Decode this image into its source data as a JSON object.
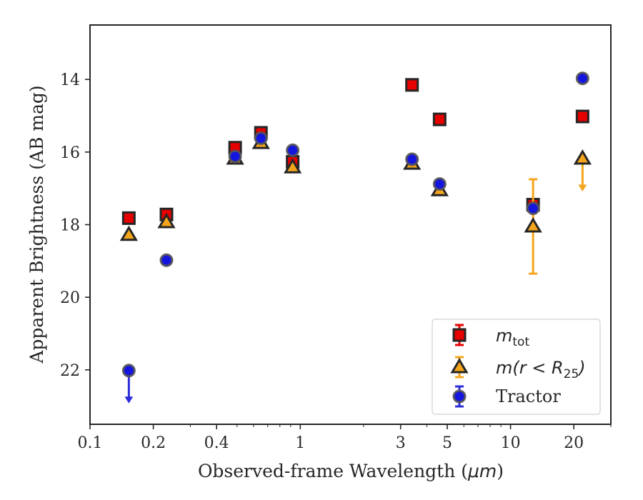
{
  "chart_data": {
    "type": "scatter",
    "xlabel_prefix": "Observed-frame Wavelength (",
    "xlabel_unit": "μm",
    "xlabel_suffix": ")",
    "ylabel": "Apparent Brightness (AB mag)",
    "xscale": "log",
    "xlim": [
      0.1,
      30
    ],
    "ylim": [
      23.5,
      12.5
    ],
    "y_inverted": true,
    "x_ticks": [
      {
        "value": 0.1,
        "label": "0.1"
      },
      {
        "value": 0.2,
        "label": "0.2"
      },
      {
        "value": 0.4,
        "label": "0.4"
      },
      {
        "value": 1,
        "label": "1"
      },
      {
        "value": 3,
        "label": "3"
      },
      {
        "value": 5,
        "label": "5"
      },
      {
        "value": 10,
        "label": "10"
      },
      {
        "value": 20,
        "label": "20"
      }
    ],
    "y_ticks": [
      {
        "value": 14,
        "label": "14"
      },
      {
        "value": 16,
        "label": "16"
      },
      {
        "value": 18,
        "label": "18"
      },
      {
        "value": 20,
        "label": "20"
      },
      {
        "value": 22,
        "label": "22"
      }
    ],
    "grid": false,
    "legend_position": "lower-right",
    "series": [
      {
        "name": "m_tot",
        "legend_main": "m",
        "legend_sub": "tot",
        "legend_rest": "",
        "marker": "square",
        "color": "#e60000",
        "errcolor": "#e60000",
        "points": [
          {
            "x": 0.153,
            "y": 17.82
          },
          {
            "x": 0.231,
            "y": 17.72
          },
          {
            "x": 0.49,
            "y": 15.88
          },
          {
            "x": 0.65,
            "y": 15.47
          },
          {
            "x": 0.92,
            "y": 16.27
          },
          {
            "x": 3.4,
            "y": 14.15
          },
          {
            "x": 4.6,
            "y": 15.1
          },
          {
            "x": 12.8,
            "y": 17.45
          },
          {
            "x": 22.0,
            "y": 15.02
          }
        ]
      },
      {
        "name": "m(r < R25)",
        "legend_main": "m(r < R",
        "legend_sub": "25",
        "legend_rest": ")",
        "marker": "triangle",
        "color": "#f5a51c",
        "errcolor": "#f5a51c",
        "points": [
          {
            "x": 0.153,
            "y": 18.28
          },
          {
            "x": 0.231,
            "y": 17.93
          },
          {
            "x": 0.49,
            "y": 16.18
          },
          {
            "x": 0.65,
            "y": 15.75
          },
          {
            "x": 0.92,
            "y": 16.42
          },
          {
            "x": 3.4,
            "y": 16.32
          },
          {
            "x": 4.6,
            "y": 17.05
          },
          {
            "x": 12.8,
            "y": 18.05,
            "yerr": 1.3
          },
          {
            "x": 22.0,
            "y": 16.18,
            "upper_limit": true
          }
        ]
      },
      {
        "name": "Tractor",
        "legend_main": "Tractor",
        "legend_sub": "",
        "legend_rest": "",
        "marker": "circle",
        "color": "#1515e0",
        "errcolor": "#2b2bdb",
        "points": [
          {
            "x": 0.153,
            "y": 22.02,
            "upper_limit": true
          },
          {
            "x": 0.231,
            "y": 18.98
          },
          {
            "x": 0.49,
            "y": 16.12
          },
          {
            "x": 0.65,
            "y": 15.62
          },
          {
            "x": 0.92,
            "y": 15.95
          },
          {
            "x": 3.4,
            "y": 16.2
          },
          {
            "x": 4.6,
            "y": 16.88
          },
          {
            "x": 12.8,
            "y": 17.55
          },
          {
            "x": 22.0,
            "y": 13.97
          }
        ]
      }
    ]
  }
}
